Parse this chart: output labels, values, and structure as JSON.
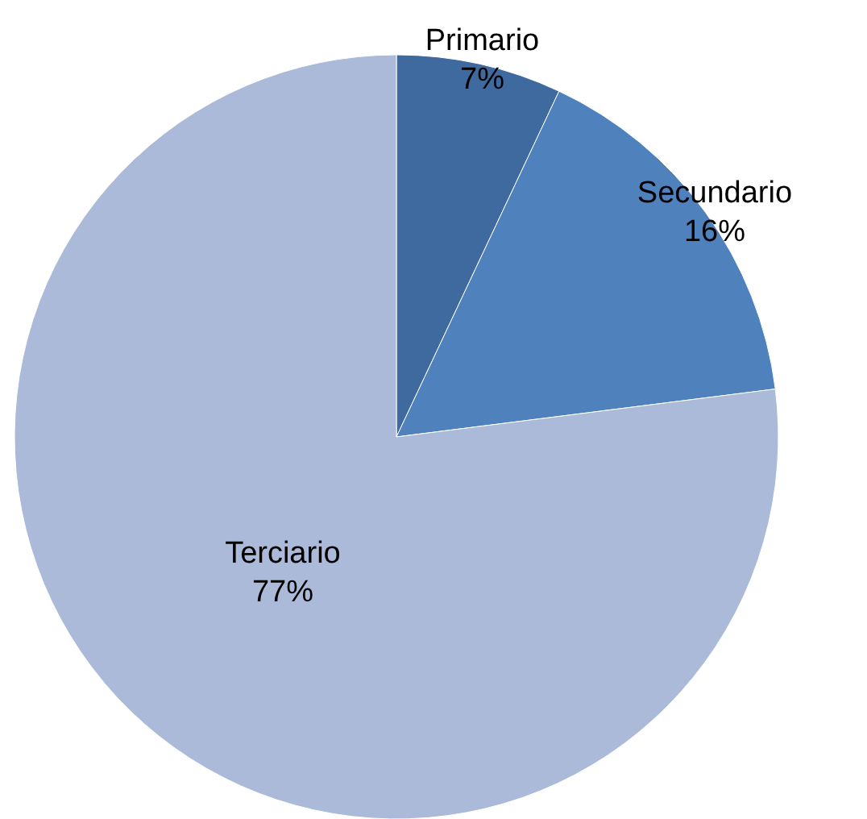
{
  "chart_data": {
    "type": "pie",
    "categories": [
      "Primario",
      "Secundario",
      "Terciario"
    ],
    "values": [
      7,
      16,
      77
    ],
    "colors": [
      "#3f6aa0",
      "#4f81bd",
      "#aabad8"
    ],
    "value_labels": [
      "7%",
      "16%",
      "77%"
    ]
  }
}
